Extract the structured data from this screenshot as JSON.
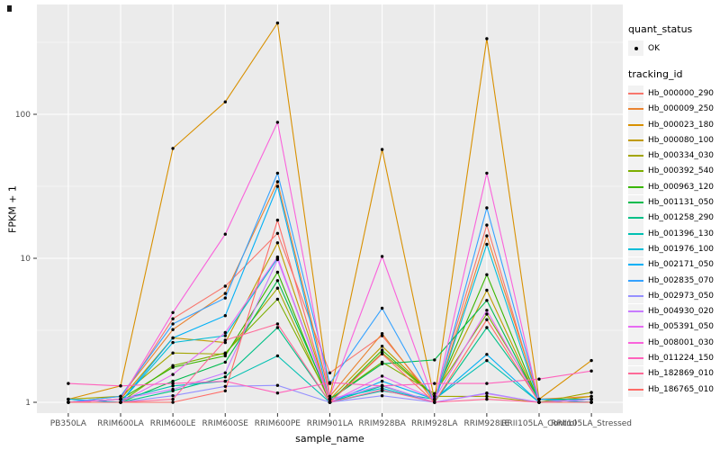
{
  "chart_data": {
    "type": "line",
    "title": "",
    "xlabel": "sample_name",
    "ylabel": "FPKM + 1",
    "y_scale": "log10",
    "y_ticks": [
      1,
      10,
      100
    ],
    "y_tick_labels": [
      "1",
      "10",
      "100"
    ],
    "y_minor_ticks": [
      3.162,
      31.62,
      316.2
    ],
    "ylim": [
      0.84,
      580
    ],
    "grid": "on",
    "panel_bg": "#EBEBEB",
    "grid_color": "#FFFFFF",
    "tick_label_color": "#4D4D4D",
    "point_color": "#000000",
    "legend": {
      "position": "right",
      "quant_status_title": "quant_status",
      "quant_status_items": [
        "OK"
      ],
      "tracking_id_title": "tracking_id",
      "key_bg": "#F2F2F2"
    },
    "categories": [
      "PB350LA",
      "RRIM600LA",
      "RRIM600LE",
      "RRIM600SE",
      "RRIM600PE",
      "RRIM901LA",
      "RRIM928BA",
      "RRIM928LA",
      "RRIM928LE",
      "RRII105LA_Control",
      "RRII105LA_Stressed"
    ],
    "series": [
      {
        "name": "Hb_000000_290",
        "color": "#F8766D",
        "values": [
          1.0,
          1.05,
          3.8,
          6.4,
          14.9,
          1.6,
          2.9,
          1.05,
          17.0,
          1.0,
          1.05
        ]
      },
      {
        "name": "Hb_000009_250",
        "color": "#EA8331",
        "values": [
          1.0,
          1.1,
          3.2,
          5.7,
          34.0,
          1.1,
          3.0,
          1.0,
          14.3,
          1.05,
          1.1
        ]
      },
      {
        "name": "Hb_000023_180",
        "color": "#D89000",
        "values": [
          1.05,
          1.3,
          58.0,
          122.0,
          430.0,
          1.1,
          57.0,
          1.05,
          335.0,
          1.05,
          1.95
        ]
      },
      {
        "name": "Hb_000080_100",
        "color": "#C09B00",
        "values": [
          1.0,
          1.05,
          2.8,
          2.6,
          12.8,
          1.05,
          2.45,
          1.1,
          6.0,
          1.0,
          1.1
        ]
      },
      {
        "name": "Hb_000334_030",
        "color": "#A3A500",
        "values": [
          1.05,
          1.1,
          2.2,
          2.16,
          6.2,
          1.0,
          2.2,
          1.1,
          1.1,
          1.0,
          1.17
        ]
      },
      {
        "name": "Hb_000392_540",
        "color": "#7CAE00",
        "values": [
          1.0,
          1.0,
          1.8,
          2.2,
          5.2,
          1.05,
          1.9,
          1.15,
          4.1,
          1.05,
          1.0
        ]
      },
      {
        "name": "Hb_000963_120",
        "color": "#39B600",
        "values": [
          1.0,
          1.05,
          1.75,
          2.1,
          8.0,
          1.0,
          2.3,
          1.1,
          7.7,
          1.0,
          1.05
        ]
      },
      {
        "name": "Hb_001131_050",
        "color": "#00BB4E",
        "values": [
          1.0,
          1.0,
          1.4,
          1.9,
          7.0,
          1.05,
          1.85,
          1.97,
          5.1,
          1.0,
          1.0
        ]
      },
      {
        "name": "Hb_001258_290",
        "color": "#00C087",
        "values": [
          1.0,
          1.0,
          1.2,
          1.5,
          3.3,
          1.0,
          1.3,
          1.0,
          3.3,
          1.05,
          1.05
        ]
      },
      {
        "name": "Hb_001396_130",
        "color": "#00C0B2",
        "values": [
          1.0,
          1.05,
          1.3,
          1.4,
          2.1,
          1.0,
          1.2,
          1.05,
          1.95,
          1.0,
          1.0
        ]
      },
      {
        "name": "Hb_001976_100",
        "color": "#00BCD8",
        "values": [
          1.0,
          1.0,
          2.6,
          2.9,
          10.0,
          1.05,
          1.25,
          1.0,
          12.5,
          1.0,
          1.05
        ]
      },
      {
        "name": "Hb_002171_050",
        "color": "#00B0F6",
        "values": [
          1.05,
          1.0,
          2.8,
          4.0,
          31.6,
          1.0,
          1.4,
          1.05,
          2.15,
          1.0,
          1.0
        ]
      },
      {
        "name": "Hb_002835_070",
        "color": "#35A2FF",
        "values": [
          1.0,
          1.1,
          3.5,
          5.3,
          39.0,
          1.35,
          4.5,
          1.0,
          22.4,
          1.05,
          1.0
        ]
      },
      {
        "name": "Hb_002973_050",
        "color": "#9590FF",
        "values": [
          1.0,
          1.0,
          1.11,
          1.29,
          1.31,
          1.0,
          1.11,
          1.0,
          1.16,
          1.0,
          1.0
        ]
      },
      {
        "name": "Hb_004930_020",
        "color": "#C77CFF",
        "values": [
          1.0,
          1.05,
          1.23,
          1.6,
          9.8,
          1.05,
          1.31,
          1.0,
          1.15,
          1.0,
          1.05
        ]
      },
      {
        "name": "Hb_005391_050",
        "color": "#E76BF3",
        "values": [
          1.0,
          1.0,
          1.56,
          3.05,
          10.2,
          1.0,
          1.52,
          1.05,
          4.35,
          1.0,
          1.0
        ]
      },
      {
        "name": "Hb_008001_030",
        "color": "#FA62DB",
        "values": [
          1.0,
          1.05,
          4.2,
          14.7,
          88.0,
          1.1,
          10.3,
          1.0,
          39.0,
          1.0,
          1.0
        ]
      },
      {
        "name": "Hb_011224_150",
        "color": "#FF62BC",
        "values": [
          1.35,
          1.3,
          1.35,
          1.4,
          1.16,
          1.37,
          1.3,
          1.35,
          1.35,
          1.45,
          1.65
        ]
      },
      {
        "name": "Hb_182869_010",
        "color": "#FF6A98",
        "values": [
          1.0,
          1.0,
          1.05,
          2.7,
          3.5,
          1.0,
          1.22,
          1.0,
          1.05,
          1.0,
          1.0
        ]
      },
      {
        "name": "Hb_186765_010",
        "color": "#FF6C67",
        "values": [
          1.0,
          1.0,
          1.0,
          1.2,
          18.4,
          1.0,
          2.17,
          1.0,
          3.75,
          1.0,
          1.0
        ]
      }
    ]
  }
}
